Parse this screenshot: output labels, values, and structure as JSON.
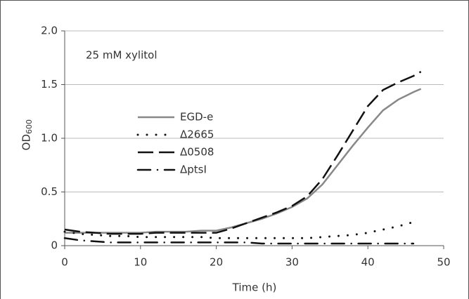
{
  "chart_data": {
    "type": "line",
    "annotation": "25 mM xylitol",
    "x_label": "Time (h)",
    "y_label": "OD",
    "y_label_sub": "600",
    "x": [
      0,
      2,
      4,
      6,
      8,
      10,
      12,
      14,
      16,
      18,
      20,
      22,
      24,
      26,
      28,
      30,
      32,
      34,
      36,
      38,
      40,
      42,
      44,
      46,
      47
    ],
    "series": [
      {
        "name": "EGD-e",
        "color": "#888888",
        "style": "solid",
        "values": [
          0.12,
          0.12,
          0.12,
          0.12,
          0.12,
          0.12,
          0.13,
          0.13,
          0.13,
          0.14,
          0.14,
          0.17,
          0.21,
          0.25,
          0.3,
          0.36,
          0.44,
          0.57,
          0.75,
          0.93,
          1.1,
          1.26,
          1.36,
          1.43,
          1.46
        ]
      },
      {
        "name": "Δ2665",
        "color": "#111111",
        "style": "dotted",
        "values": [
          0.13,
          0.11,
          0.1,
          0.09,
          0.09,
          0.08,
          0.08,
          0.08,
          0.08,
          0.08,
          0.07,
          0.07,
          0.07,
          0.07,
          0.07,
          0.07,
          0.07,
          0.08,
          0.09,
          0.1,
          0.12,
          0.15,
          0.18,
          0.22,
          null
        ]
      },
      {
        "name": "Δ0508",
        "color": "#111111",
        "style": "dashed",
        "values": [
          0.15,
          0.13,
          0.12,
          0.11,
          0.11,
          0.11,
          0.12,
          0.12,
          0.12,
          0.12,
          0.12,
          0.16,
          0.21,
          0.26,
          0.31,
          0.37,
          0.46,
          0.62,
          0.84,
          1.07,
          1.3,
          1.45,
          1.52,
          1.58,
          1.62
        ]
      },
      {
        "name": "ΔptsI",
        "color": "#111111",
        "style": "dashdot",
        "values": [
          0.07,
          0.05,
          0.04,
          0.03,
          0.03,
          0.03,
          0.03,
          0.03,
          0.03,
          0.03,
          0.03,
          0.03,
          0.03,
          0.02,
          0.02,
          0.02,
          0.02,
          0.02,
          0.02,
          0.02,
          0.02,
          0.02,
          0.02,
          0.02,
          null
        ]
      }
    ],
    "xlim": [
      0,
      50
    ],
    "xticks": [
      0,
      10,
      20,
      30,
      40,
      50
    ],
    "ylim": [
      0,
      2
    ],
    "yticks": [
      0,
      0.5,
      {
        "value": 1,
        "label": "1.0"
      },
      1.5,
      {
        "value": 2,
        "label": "2.0"
      }
    ],
    "grid": true
  }
}
